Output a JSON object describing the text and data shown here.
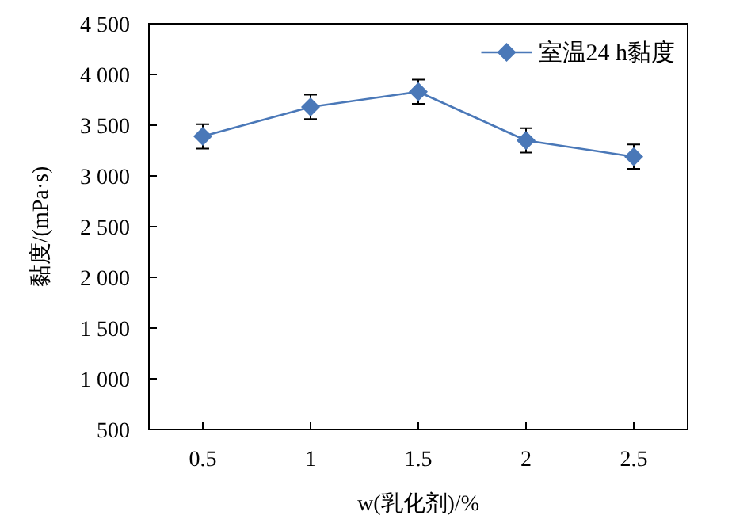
{
  "chart_data": {
    "type": "line",
    "xlabel": "w(乳化剂)/%",
    "ylabel": "黏度/(mPa·s)",
    "categories": [
      "0.5",
      "1",
      "1.5",
      "2",
      "2.5"
    ],
    "series": [
      {
        "name": "室温24 h黏度",
        "color": "#4a78b8",
        "values": [
          3390,
          3680,
          3830,
          3350,
          3190
        ],
        "errors": [
          120,
          120,
          120,
          120,
          120
        ]
      }
    ],
    "ylim": [
      500,
      4500
    ],
    "yticks": [
      {
        "value": 500,
        "label": "500"
      },
      {
        "value": 1000,
        "label": "1 000"
      },
      {
        "value": 1500,
        "label": "1 500"
      },
      {
        "value": 2000,
        "label": "2 000"
      },
      {
        "value": 2500,
        "label": "2 500"
      },
      {
        "value": 3000,
        "label": "3 000"
      },
      {
        "value": 3500,
        "label": "3 500"
      },
      {
        "value": 4000,
        "label": "4 000"
      },
      {
        "value": 4500,
        "label": "4 500"
      }
    ],
    "marker": "diamond",
    "line_style": "solid",
    "legend": "top right",
    "grid": false
  }
}
